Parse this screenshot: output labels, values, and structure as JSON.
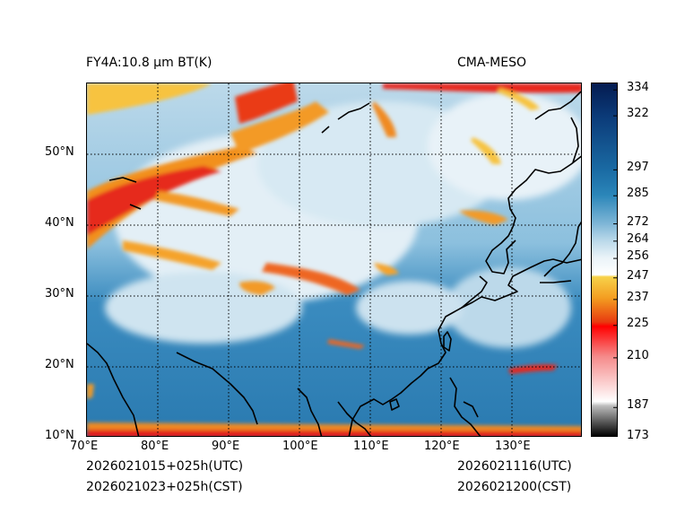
{
  "title_left": "FY4A:10.8 µm BT(K)",
  "title_right": "CMA-MESO",
  "time_left_utc": "2026021015+025h(UTC)",
  "time_left_cst": "2026021023+025h(CST)",
  "time_right_utc": "2026021116(UTC)",
  "time_right_cst": "2026021200(CST)",
  "map": {
    "lon_range": [
      70,
      140
    ],
    "lat_range": [
      10,
      60
    ],
    "lon_ticks": [
      {
        "value": 70,
        "label": "70°E"
      },
      {
        "value": 80,
        "label": "80°E"
      },
      {
        "value": 90,
        "label": "90°E"
      },
      {
        "value": 100,
        "label": "100°E"
      },
      {
        "value": 110,
        "label": "110°E"
      },
      {
        "value": 120,
        "label": "120°E"
      },
      {
        "value": 130,
        "label": "130°E"
      }
    ],
    "lat_ticks": [
      {
        "value": 10,
        "label": "10°N"
      },
      {
        "value": 20,
        "label": "20°N"
      },
      {
        "value": 30,
        "label": "30°N"
      },
      {
        "value": 40,
        "label": "40°N"
      },
      {
        "value": 50,
        "label": "50°N"
      }
    ],
    "colors": {
      "ocean": "#2a7ab0",
      "land_warm": "#4a97c4",
      "cloud_light": "#dbeaf3",
      "cloud_white": "#f4f8fb",
      "cold_orange": "#f08a24",
      "cold_red": "#e11a1a",
      "cold_yellow": "#f7c341",
      "coast": "#000000"
    }
  },
  "colorbar": {
    "min": 173,
    "max": 337,
    "ticks": [
      {
        "value": 334,
        "label": "334"
      },
      {
        "value": 322,
        "label": "322"
      },
      {
        "value": 297,
        "label": "297"
      },
      {
        "value": 285,
        "label": "285"
      },
      {
        "value": 272,
        "label": "272"
      },
      {
        "value": 264,
        "label": "264"
      },
      {
        "value": 256,
        "label": "256"
      },
      {
        "value": 247,
        "label": "247"
      },
      {
        "value": 237,
        "label": "237"
      },
      {
        "value": 225,
        "label": "225"
      },
      {
        "value": 210,
        "label": "210"
      },
      {
        "value": 187,
        "label": "187"
      },
      {
        "value": 173,
        "label": "173"
      }
    ],
    "stops": [
      {
        "value": 173,
        "color": "#000000"
      },
      {
        "value": 187,
        "color": "#bdbdbd"
      },
      {
        "value": 189,
        "color": "#ffffff"
      },
      {
        "value": 210,
        "color": "#f58a8a"
      },
      {
        "value": 224,
        "color": "#ff0000"
      },
      {
        "value": 226,
        "color": "#e83a10"
      },
      {
        "value": 237,
        "color": "#f39c20"
      },
      {
        "value": 247,
        "color": "#f7d24a"
      },
      {
        "value": 248,
        "color": "#ffffff"
      },
      {
        "value": 256,
        "color": "#eaf3f8"
      },
      {
        "value": 264,
        "color": "#b9d8e9"
      },
      {
        "value": 272,
        "color": "#7db5d6"
      },
      {
        "value": 285,
        "color": "#2b86b9"
      },
      {
        "value": 297,
        "color": "#1a6aa3"
      },
      {
        "value": 322,
        "color": "#0b3a78"
      },
      {
        "value": 337,
        "color": "#041b50"
      }
    ]
  }
}
